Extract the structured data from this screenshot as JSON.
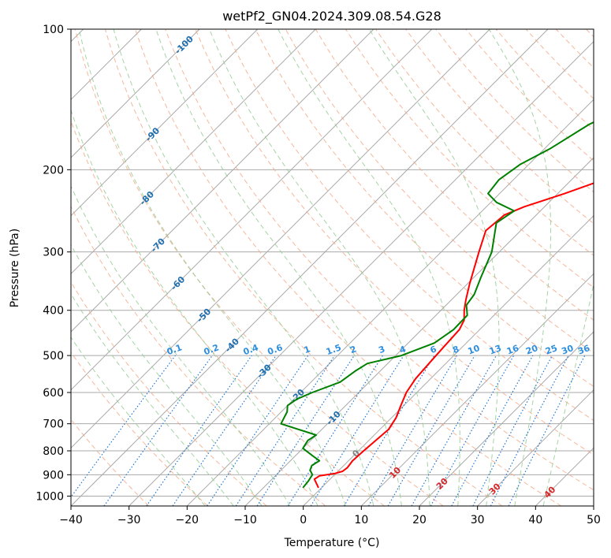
{
  "chart_data": {
    "type": "line",
    "subtype": "skew-T log-p diagram",
    "title": "wetPf2_GN04.2024.309.08.54.G28",
    "xlabel": "Temperature (°C)",
    "ylabel": "Pressure (hPa)",
    "xlim": [
      -40,
      50
    ],
    "ylim": [
      1050,
      100
    ],
    "y_scale": "log",
    "grid": true,
    "x_ticks": [
      "−40",
      "−30",
      "−20",
      "−10",
      "0",
      "10",
      "20",
      "30",
      "40",
      "50"
    ],
    "y_ticks": [
      "100",
      "200",
      "300",
      "400",
      "500",
      "600",
      "700",
      "800",
      "900",
      "1000"
    ],
    "skewed_isotherm_labels": [
      "-100",
      "-90",
      "-80",
      "-70",
      "-60",
      "-50",
      "-40",
      "-30",
      "-20",
      "-10",
      "0",
      "10",
      "20",
      "30",
      "40"
    ],
    "mixing_ratio_labels": [
      "0.1",
      "0.2",
      "0.4",
      "0.6",
      "1",
      "1.5",
      "2",
      "3",
      "4",
      "6",
      "8",
      "10",
      "13",
      "16",
      "20",
      "25",
      "30",
      "36"
    ],
    "colors": {
      "temperature": "#ff0000",
      "dewpoint": "#008000",
      "isotherm_grid": "#aaaaaa",
      "dry_adiabat": "#f4a582",
      "moist_adiabat": "#8fc98f",
      "mixing_ratio": "#1f77d4",
      "isotherm_label": "#1f6fb0",
      "warm_label": "#d62728",
      "zero_label": "#808080"
    },
    "series": [
      {
        "key": "temperature",
        "points": [
          {
            "p": 960,
            "t": -0.5
          },
          {
            "p": 920,
            "t": -2.7
          },
          {
            "p": 905,
            "t": -2.4
          },
          {
            "p": 895,
            "t": -0.2
          },
          {
            "p": 885,
            "t": 0.8
          },
          {
            "p": 870,
            "t": 1.0
          },
          {
            "p": 840,
            "t": 0.7
          },
          {
            "p": 800,
            "t": 0.9
          },
          {
            "p": 760,
            "t": 1.2
          },
          {
            "p": 720,
            "t": 1.5
          },
          {
            "p": 680,
            "t": 0.8
          },
          {
            "p": 640,
            "t": -0.5
          },
          {
            "p": 600,
            "t": -1.8
          },
          {
            "p": 560,
            "t": -2.6
          },
          {
            "p": 520,
            "t": -2.9
          },
          {
            "p": 480,
            "t": -3.2
          },
          {
            "p": 440,
            "t": -3.5
          },
          {
            "p": 420,
            "t": -4.3
          },
          {
            "p": 400,
            "t": -6.0
          },
          {
            "p": 380,
            "t": -7.5
          },
          {
            "p": 350,
            "t": -9.7
          },
          {
            "p": 300,
            "t": -13.5
          },
          {
            "p": 270,
            "t": -16.0
          },
          {
            "p": 250,
            "t": -15.5
          },
          {
            "p": 240,
            "t": -13.5
          },
          {
            "p": 225,
            "t": -8.8
          },
          {
            "p": 210,
            "t": -4.5
          },
          {
            "p": 200,
            "t": -2.2
          },
          {
            "p": 190,
            "t": -0.5
          },
          {
            "p": 160,
            "t": 3.3
          },
          {
            "p": 130,
            "t": 8.5
          },
          {
            "p": 110,
            "t": 12.5
          },
          {
            "p": 100,
            "t": 16.5
          }
        ]
      },
      {
        "key": "dewpoint",
        "points": [
          {
            "p": 960,
            "t": -3.2
          },
          {
            "p": 930,
            "t": -3.4
          },
          {
            "p": 900,
            "t": -3.8
          },
          {
            "p": 880,
            "t": -5.0
          },
          {
            "p": 860,
            "t": -5.5
          },
          {
            "p": 840,
            "t": -5.0
          },
          {
            "p": 820,
            "t": -7.0
          },
          {
            "p": 790,
            "t": -10.0
          },
          {
            "p": 760,
            "t": -10.5
          },
          {
            "p": 740,
            "t": -10.0
          },
          {
            "p": 700,
            "t": -18.0
          },
          {
            "p": 660,
            "t": -19.0
          },
          {
            "p": 640,
            "t": -20.0
          },
          {
            "p": 620,
            "t": -19.5
          },
          {
            "p": 600,
            "t": -18.0
          },
          {
            "p": 570,
            "t": -15.0
          },
          {
            "p": 540,
            "t": -14.3
          },
          {
            "p": 520,
            "t": -13.5
          },
          {
            "p": 500,
            "t": -9.0
          },
          {
            "p": 470,
            "t": -5.5
          },
          {
            "p": 440,
            "t": -4.5
          },
          {
            "p": 410,
            "t": -4.6
          },
          {
            "p": 390,
            "t": -6.5
          },
          {
            "p": 370,
            "t": -7.0
          },
          {
            "p": 340,
            "t": -8.8
          },
          {
            "p": 300,
            "t": -11.3
          },
          {
            "p": 260,
            "t": -15.5
          },
          {
            "p": 245,
            "t": -14.5
          },
          {
            "p": 235,
            "t": -19.0
          },
          {
            "p": 225,
            "t": -22.0
          },
          {
            "p": 210,
            "t": -22.5
          },
          {
            "p": 195,
            "t": -21.5
          },
          {
            "p": 180,
            "t": -19.0
          },
          {
            "p": 160,
            "t": -16.5
          },
          {
            "p": 140,
            "t": -11.5
          },
          {
            "p": 120,
            "t": -5.0
          },
          {
            "p": 100,
            "t": 0.8
          }
        ]
      }
    ]
  }
}
